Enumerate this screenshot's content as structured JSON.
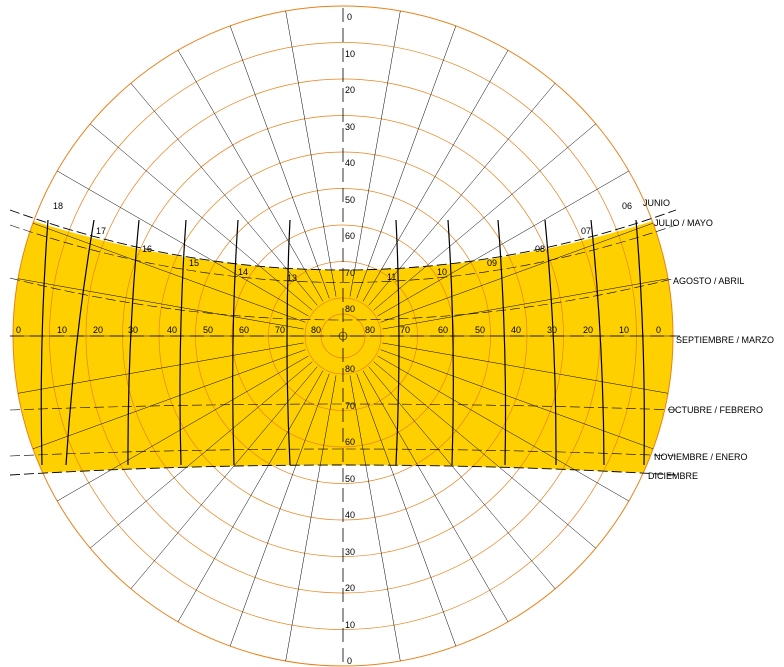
{
  "colors": {
    "band_fill": "#FFD000",
    "circle_stroke": "#E8821C",
    "radial_stroke": "#000000",
    "hour_line": "#000000",
    "month_line": "#000000",
    "text": "#000000"
  },
  "altitude_labels_top": [
    "0",
    "10",
    "20",
    "30",
    "40",
    "50",
    "60",
    "70",
    "80"
  ],
  "altitude_labels_bottom": [
    "80",
    "70",
    "60",
    "50",
    "40",
    "30",
    "20",
    "10",
    "0"
  ],
  "left_scale": [
    "0",
    "10",
    "20",
    "30",
    "40",
    "50",
    "60",
    "70",
    "80"
  ],
  "right_scale": [
    "80",
    "70",
    "60",
    "50",
    "40",
    "30",
    "20",
    "10",
    "0"
  ],
  "hour_labels": [
    "18",
    "17",
    "16",
    "15",
    "14",
    "13",
    "11",
    "10",
    "09",
    "08",
    "07",
    "06"
  ],
  "month_labels": [
    "JUNIO",
    "JULIO / MAYO",
    "AGOSTO / ABRIL",
    "SEPTIEMBRE / MARZO",
    "OCTUBRE / FEBRERO",
    "NOVIEMBRE / ENERO",
    "DICIEMBRE"
  ]
}
